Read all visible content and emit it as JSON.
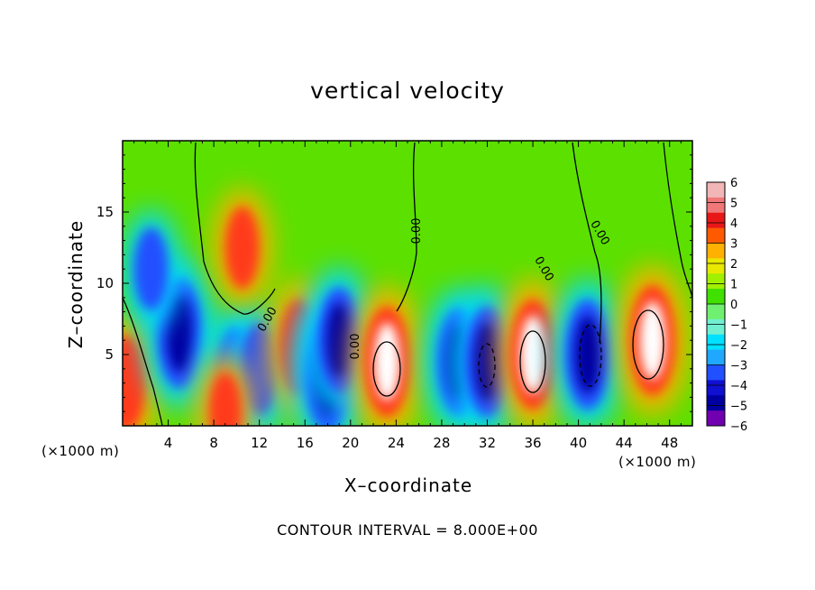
{
  "chart_data": {
    "type": "heatmap",
    "title": "vertical velocity",
    "xlabel": "X–coordinate",
    "ylabel": "Z–coordinate",
    "x_unit_label": "(×1000 m)",
    "xlim": [
      0,
      50
    ],
    "ylim": [
      0,
      20
    ],
    "x_ticks": [
      4,
      8,
      12,
      16,
      20,
      24,
      28,
      32,
      36,
      40,
      44,
      48
    ],
    "y_ticks": [
      5,
      10,
      15
    ],
    "note": "CONTOUR INTERVAL = 8.000E+00",
    "contour_labels": [
      "0.00",
      "0.00",
      "0.00",
      "0.00",
      "0.00"
    ],
    "colorbar": {
      "ticks": [
        6,
        5,
        4,
        3,
        2,
        1,
        0,
        -1,
        -2,
        -3,
        -4,
        -5,
        -6
      ],
      "min": -6,
      "max": 6,
      "colors": [
        "#f2b6b6",
        "#f07878",
        "#e81818",
        "#ff5a00",
        "#ffb000",
        "#e8e800",
        "#a0f000",
        "#40e000",
        "#70f070",
        "#70f0d0",
        "#00e0ff",
        "#20a8ff",
        "#2050ff",
        "#1010d0",
        "#0000a0",
        "#7000b0"
      ]
    },
    "cells": [
      {
        "x": 0.3,
        "z": 3.0,
        "w": 4.5
      },
      {
        "x": 5.0,
        "z": 6.5,
        "w": -6
      },
      {
        "x": 2.5,
        "z": 11.0,
        "w": -3
      },
      {
        "x": 10.0,
        "z": 3.5,
        "w": -4.5
      },
      {
        "x": 12.0,
        "z": 4.0,
        "w": -4
      },
      {
        "x": 10.5,
        "z": 12.5,
        "w": 3
      },
      {
        "x": 15.5,
        "z": 5.5,
        "w": 4.5
      },
      {
        "x": 18.0,
        "z": 3.5,
        "w": -6
      },
      {
        "x": 19.0,
        "z": 6.0,
        "w": -5.5
      },
      {
        "x": 23.2,
        "z": 4.5,
        "w": 6
      },
      {
        "x": 29.5,
        "z": 4.5,
        "w": -5.5
      },
      {
        "x": 32.0,
        "z": 4.5,
        "w": -6
      },
      {
        "x": 36.0,
        "z": 5.0,
        "w": 6
      },
      {
        "x": 40.8,
        "z": 5.0,
        "w": -6
      },
      {
        "x": 46.5,
        "z": 6.0,
        "w": 6
      },
      {
        "x": 9.0,
        "z": 1.0,
        "w": 2.5
      }
    ]
  }
}
